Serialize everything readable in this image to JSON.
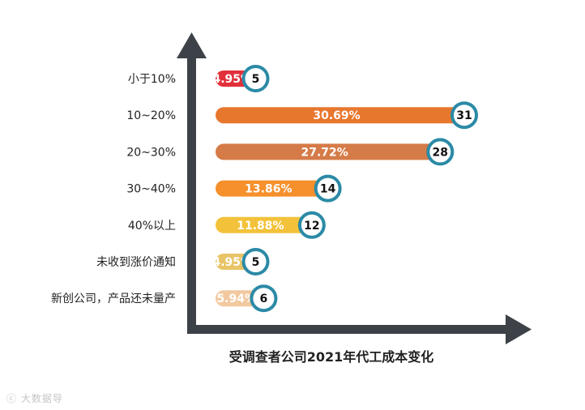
{
  "chart_data": {
    "type": "bar",
    "orientation": "horizontal",
    "title": "受调查者公司2021年代工成本变化",
    "categories": [
      "小于10%",
      "10~20%",
      "20~30%",
      "30~40%",
      "40%以上",
      "未收到涨价通知",
      "新创公司，产品还未量产"
    ],
    "values": [
      5,
      31,
      28,
      14,
      12,
      5,
      6
    ],
    "percent_labels": [
      "4.95%",
      "30.69%",
      "27.72%",
      "13.86%",
      "11.88%",
      "4.95%",
      "5.94%"
    ],
    "bar_colors": [
      "#e2303a",
      "#e8772e",
      "#d57b48",
      "#f5902c",
      "#f3c23a",
      "#e8c466",
      "#f2c9a0"
    ],
    "marker_ring_color": "#2b8aa6",
    "axis_color": "#3c4247",
    "grid": false,
    "legend": "none"
  },
  "watermark": "大数据导"
}
